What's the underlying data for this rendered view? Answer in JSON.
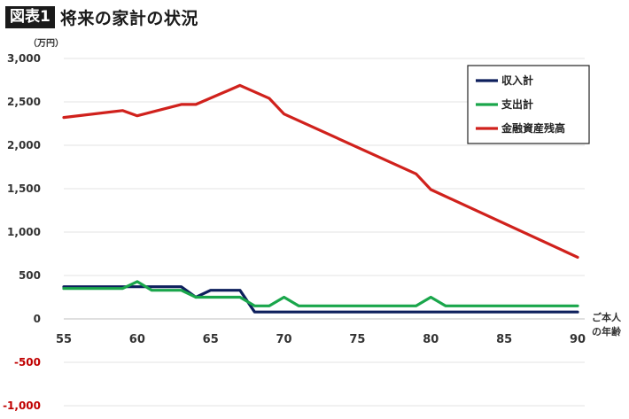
{
  "header": {
    "badge": "図表1",
    "title": "将来の家計の状況"
  },
  "chart_data": {
    "type": "line",
    "unit_label": "（万円）",
    "x_axis_label_line1": "ご本人",
    "x_axis_label_line2": "の年齢",
    "xlim": [
      55,
      90
    ],
    "ylim": [
      -1000,
      3000
    ],
    "x_ticks": [
      55,
      60,
      65,
      70,
      75,
      80,
      85,
      90
    ],
    "y_ticks": [
      {
        "value": 3000,
        "label": "3,000",
        "negative": false
      },
      {
        "value": 2500,
        "label": "2,500",
        "negative": false
      },
      {
        "value": 2000,
        "label": "2,000",
        "negative": false
      },
      {
        "value": 1500,
        "label": "1,500",
        "negative": false
      },
      {
        "value": 1000,
        "label": "1,000",
        "negative": false
      },
      {
        "value": 500,
        "label": "500",
        "negative": false
      },
      {
        "value": 0,
        "label": "0",
        "negative": false
      },
      {
        "value": -500,
        "label": "-500",
        "negative": true
      },
      {
        "value": -1000,
        "label": "-1,000",
        "negative": true
      }
    ],
    "grid": true,
    "legend_position": "top-right",
    "series": [
      {
        "name": "収入計",
        "color": "#0d1f5c",
        "x": [
          55,
          56,
          57,
          58,
          59,
          60,
          61,
          62,
          63,
          64,
          65,
          66,
          67,
          68,
          69,
          70,
          75,
          80,
          85,
          90
        ],
        "y": [
          370,
          370,
          370,
          370,
          370,
          370,
          370,
          370,
          370,
          250,
          330,
          330,
          330,
          80,
          80,
          80,
          80,
          80,
          80,
          80
        ]
      },
      {
        "name": "支出計",
        "color": "#1aa64b",
        "x": [
          55,
          56,
          57,
          58,
          59,
          60,
          61,
          62,
          63,
          64,
          65,
          66,
          67,
          68,
          69,
          70,
          71,
          75,
          79,
          80,
          81,
          85,
          90
        ],
        "y": [
          350,
          350,
          350,
          350,
          350,
          430,
          330,
          330,
          330,
          250,
          250,
          250,
          250,
          150,
          150,
          250,
          150,
          150,
          150,
          250,
          150,
          150,
          150
        ]
      },
      {
        "name": "金融資産残高",
        "color": "#d0211c",
        "x": [
          55,
          59,
          60,
          63,
          64,
          67,
          69,
          70,
          79,
          80,
          90
        ],
        "y": [
          2320,
          2400,
          2340,
          2470,
          2470,
          2690,
          2540,
          2360,
          1670,
          1490,
          710
        ]
      }
    ]
  }
}
